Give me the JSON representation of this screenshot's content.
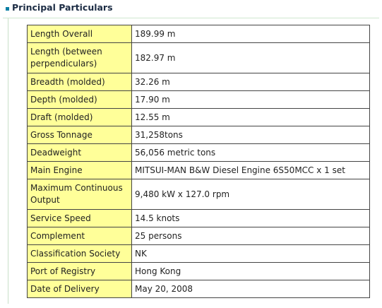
{
  "section": {
    "title": "Principal Particulars",
    "accent_color": "#0a7fa4",
    "label_cell_color": "#ffff99"
  },
  "rows": [
    {
      "label": "Length Overall",
      "value": "189.99 m"
    },
    {
      "label": "Length (between perpendiculars)",
      "value": "182.97 m"
    },
    {
      "label": "Breadth (molded)",
      "value": "32.26 m"
    },
    {
      "label": "Depth (molded)",
      "value": "17.90 m"
    },
    {
      "label": "Draft (molded)",
      "value": "12.55 m"
    },
    {
      "label": "Gross Tonnage",
      "value": "31,258tons"
    },
    {
      "label": "Deadweight",
      "value": "56,056 metric tons"
    },
    {
      "label": "Main Engine",
      "value": "MITSUI-MAN B&W Diesel Engine 6S50MCC x 1 set"
    },
    {
      "label": "Maximum Continuous Output",
      "value": "9,480 kW x 127.0 rpm"
    },
    {
      "label": "Service Speed",
      "value": "14.5 knots"
    },
    {
      "label": "Complement",
      "value": "25 persons"
    },
    {
      "label": "Classification Society",
      "value": "NK"
    },
    {
      "label": "Port of Registry",
      "value": "Hong Kong"
    },
    {
      "label": "Date of Delivery",
      "value": "May 20, 2008"
    }
  ]
}
